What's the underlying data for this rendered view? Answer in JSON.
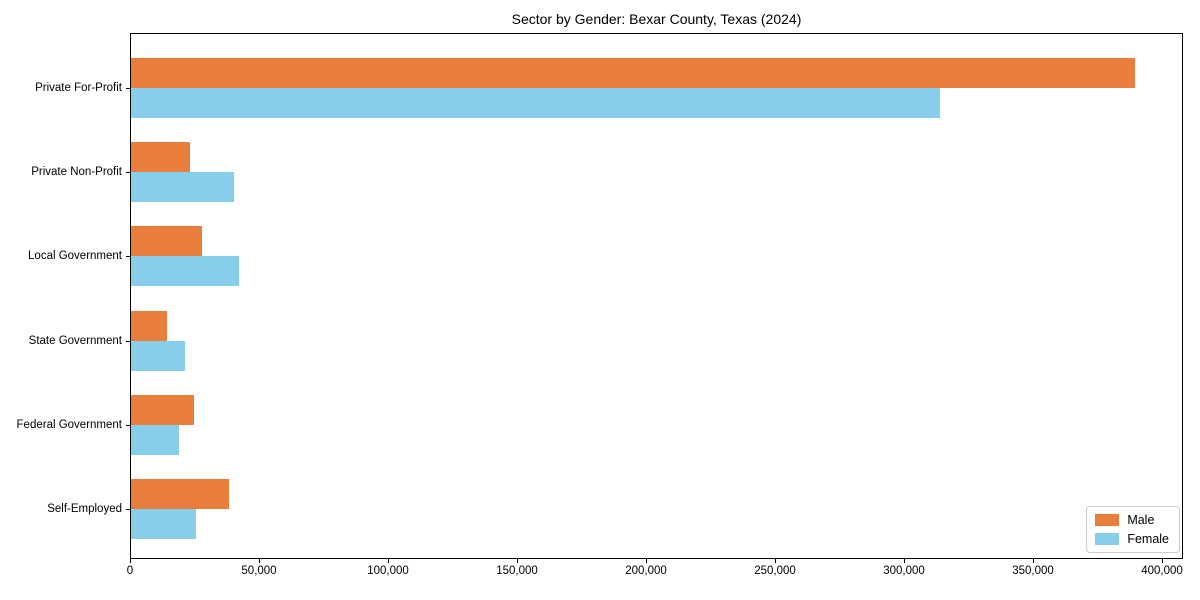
{
  "title": "Sector by Gender: Bexar County, Texas (2024)",
  "colors": {
    "male_bar": "#e87d3c",
    "female_bar": "#87ceeb",
    "axis": "#000000",
    "legend_border": "#cccccc",
    "background": "#ffffff"
  },
  "chart_data": {
    "type": "bar",
    "orientation": "horizontal",
    "title": "Sector by Gender: Bexar County, Texas (2024)",
    "categories": [
      "Private For-Profit",
      "Private Non-Profit",
      "Local Government",
      "State Government",
      "Federal Government",
      "Self-Employed"
    ],
    "series": [
      {
        "name": "Male",
        "color": "#e87d3c",
        "values": [
          389000,
          23000,
          27500,
          14000,
          24500,
          38000
        ]
      },
      {
        "name": "Female",
        "color": "#87ceeb",
        "values": [
          313500,
          40000,
          42000,
          21000,
          18500,
          25000
        ]
      }
    ],
    "xlabel": "",
    "ylabel": "",
    "xlim": [
      0,
      408000
    ],
    "x_ticks": [
      0,
      50000,
      100000,
      150000,
      200000,
      250000,
      300000,
      350000,
      400000
    ],
    "x_tick_labels": [
      "0",
      "50,000",
      "100,000",
      "150,000",
      "200,000",
      "250,000",
      "300,000",
      "350,000",
      "400,000"
    ],
    "grid": false,
    "legend_position": "lower right"
  },
  "legend": {
    "items": [
      {
        "label": "Male",
        "color": "#e87d3c"
      },
      {
        "label": "Female",
        "color": "#87ceeb"
      }
    ]
  }
}
